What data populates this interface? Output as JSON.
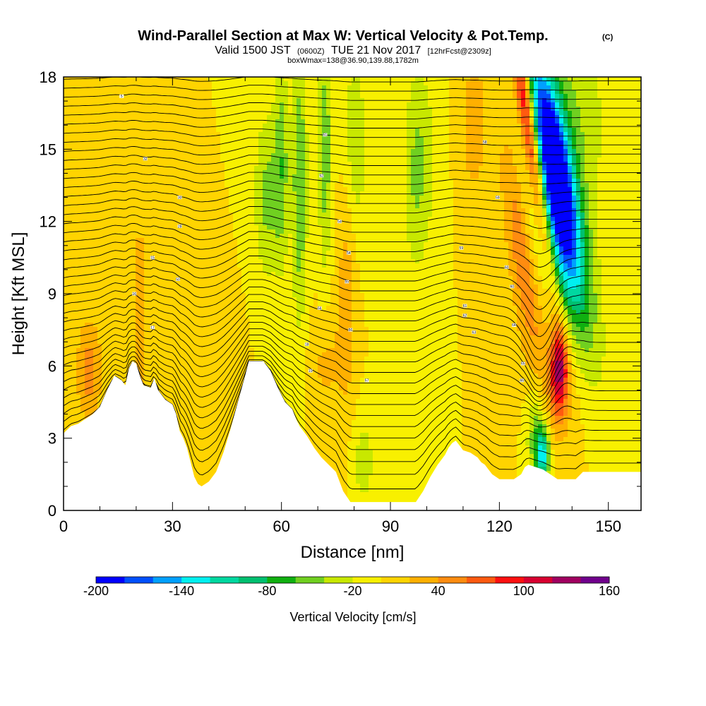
{
  "title": {
    "main": "Wind-Parallel Section at Max W: Vertical Velocity & Pot.Temp.",
    "copyright": "(C)",
    "valid_prefix": "Valid 1500 JST",
    "valid_utc": "(0600Z)",
    "valid_date": "TUE 21 Nov 2017",
    "forecast_info": "[12hrFcst@2309z]",
    "box_info": "boxWmax=138@36.90,139.88,1782m"
  },
  "chart_data": {
    "type": "heatmap",
    "xlabel": "Distance [nm]",
    "ylabel": "Height [Kft MSL]",
    "xlim": [
      0,
      159
    ],
    "ylim": [
      0,
      18
    ],
    "x_ticks": [
      0,
      30,
      60,
      90,
      120,
      150
    ],
    "x_tick_labels": [
      "0",
      "30",
      "60",
      "90",
      "120",
      "150"
    ],
    "y_ticks": [
      0,
      3,
      6,
      9,
      12,
      15,
      18
    ],
    "y_tick_labels": [
      "0",
      "3",
      "6",
      "9",
      "12",
      "15",
      "18"
    ],
    "colorbar": {
      "title": "Vertical Velocity [cm/s]",
      "levels": [
        -200,
        -180,
        -160,
        -140,
        -120,
        -100,
        -80,
        -60,
        -40,
        -20,
        0,
        20,
        40,
        60,
        80,
        100,
        120,
        140,
        160
      ],
      "tick_values": [
        -200,
        -140,
        -80,
        -20,
        40,
        100,
        160
      ],
      "tick_labels": [
        "-200",
        "-140",
        "-80",
        "-20",
        "40",
        "100",
        "160"
      ],
      "colors": [
        "#0000ff",
        "#0050ff",
        "#00a0ff",
        "#00f0f0",
        "#00d8a0",
        "#00c070",
        "#10b010",
        "#70d020",
        "#c8e800",
        "#f8f000",
        "#ffd400",
        "#ffb000",
        "#ff8c10",
        "#ff5a10",
        "#ff1010",
        "#d80030",
        "#a00060",
        "#70008c"
      ]
    },
    "terrain": [
      [
        0,
        3.2
      ],
      [
        2,
        3.5
      ],
      [
        4,
        3.6
      ],
      [
        6,
        3.8
      ],
      [
        8,
        4.0
      ],
      [
        10,
        4.3
      ],
      [
        12,
        5.0
      ],
      [
        14,
        5.6
      ],
      [
        16,
        5.4
      ],
      [
        17,
        5.2
      ],
      [
        18,
        5.9
      ],
      [
        19,
        6.2
      ],
      [
        20,
        6.1
      ],
      [
        21,
        5.6
      ],
      [
        22,
        5.2
      ],
      [
        24,
        5.1
      ],
      [
        25,
        5.5
      ],
      [
        26,
        5.0
      ],
      [
        28,
        4.6
      ],
      [
        30,
        4.4
      ],
      [
        31,
        4.0
      ],
      [
        32,
        3.3
      ],
      [
        33,
        3.0
      ],
      [
        34,
        2.6
      ],
      [
        35,
        2.0
      ],
      [
        36,
        1.4
      ],
      [
        37,
        1.1
      ],
      [
        38,
        1.0
      ],
      [
        40,
        1.2
      ],
      [
        42,
        1.6
      ],
      [
        44,
        2.4
      ],
      [
        46,
        3.4
      ],
      [
        48,
        4.5
      ],
      [
        50,
        5.6
      ],
      [
        51,
        6.2
      ],
      [
        55,
        6.2
      ],
      [
        57,
        5.8
      ],
      [
        59,
        5.1
      ],
      [
        61,
        4.5
      ],
      [
        63,
        4.2
      ],
      [
        64,
        3.8
      ],
      [
        65,
        3.5
      ],
      [
        67,
        3.1
      ],
      [
        69,
        2.6
      ],
      [
        71,
        2.2
      ],
      [
        73,
        1.9
      ],
      [
        75,
        1.6
      ],
      [
        77,
        0.8
      ],
      [
        79,
        0.35
      ],
      [
        88,
        0.35
      ],
      [
        91,
        0.35
      ],
      [
        97,
        0.35
      ],
      [
        99,
        0.8
      ],
      [
        101,
        1.4
      ],
      [
        103,
        1.9
      ],
      [
        105,
        2.3
      ],
      [
        106,
        2.6
      ],
      [
        107,
        2.8
      ],
      [
        108,
        2.9
      ],
      [
        109,
        2.7
      ],
      [
        110,
        2.5
      ],
      [
        112,
        2.4
      ],
      [
        114,
        2.2
      ],
      [
        115,
        2.0
      ],
      [
        116,
        1.9
      ],
      [
        117,
        1.7
      ],
      [
        118,
        1.5
      ],
      [
        120,
        1.3
      ],
      [
        124,
        1.3
      ],
      [
        126,
        1.5
      ],
      [
        127,
        1.8
      ],
      [
        128,
        1.9
      ],
      [
        130,
        1.8
      ],
      [
        132,
        1.7
      ],
      [
        134,
        1.5
      ],
      [
        136,
        1.3
      ],
      [
        141,
        1.3
      ],
      [
        143,
        1.6
      ],
      [
        159,
        1.6
      ]
    ],
    "w_features": [
      {
        "x": 135,
        "z": 14.5,
        "sx": 3.2,
        "sz": 3.2,
        "tilt": -1.1,
        "w": -200
      },
      {
        "x": 137.5,
        "z": 10.5,
        "sx": 5.0,
        "sz": 3.5,
        "tilt": -1.2,
        "w": -90
      },
      {
        "x": 139,
        "z": 16.0,
        "sx": 7.5,
        "sz": 3.5,
        "tilt": 0,
        "w": -40
      },
      {
        "x": 128.5,
        "z": 15.5,
        "sx": 1.6,
        "sz": 4.0,
        "tilt": -1.0,
        "w": 150
      },
      {
        "x": 126,
        "z": 11.0,
        "sx": 2.8,
        "sz": 3.5,
        "tilt": -0.8,
        "w": 60
      },
      {
        "x": 136.5,
        "z": 5.8,
        "sx": 1.6,
        "sz": 1.3,
        "tilt": 0,
        "w": 110
      },
      {
        "x": 137,
        "z": 6.5,
        "sx": 5.5,
        "sz": 2.6,
        "tilt": 0,
        "w": 35
      },
      {
        "x": 130,
        "z": 3.2,
        "sx": 1.8,
        "sz": 1.5,
        "tilt": 0,
        "w": -55
      },
      {
        "x": 132,
        "z": 2.3,
        "sx": 1.3,
        "sz": 0.8,
        "tilt": 0,
        "w": -120
      },
      {
        "x": 65,
        "z": 13.5,
        "sx": 1.5,
        "sz": 4.0,
        "tilt": 0,
        "w": -60
      },
      {
        "x": 60,
        "z": 14.5,
        "sx": 1.4,
        "sz": 3.0,
        "tilt": 0,
        "w": -50
      },
      {
        "x": 72,
        "z": 15.0,
        "sx": 1.3,
        "sz": 3.5,
        "tilt": 0,
        "w": -55
      },
      {
        "x": 56,
        "z": 13.0,
        "sx": 2.5,
        "sz": 2.5,
        "tilt": 0,
        "w": -45
      },
      {
        "x": 80,
        "z": 15.0,
        "sx": 2.5,
        "sz": 3.0,
        "tilt": 0,
        "w": -40
      },
      {
        "x": 97,
        "z": 14.0,
        "sx": 2.5,
        "sz": 3.0,
        "tilt": 0,
        "w": -40
      },
      {
        "x": 101,
        "z": 15.0,
        "sx": 3.0,
        "sz": 3.0,
        "tilt": 0,
        "w": -15
      },
      {
        "x": 113,
        "z": 16.0,
        "sx": 3.0,
        "sz": 2.5,
        "tilt": 0,
        "w": 30
      },
      {
        "x": 7,
        "z": 5.8,
        "sx": 2.5,
        "sz": 1.5,
        "tilt": 0,
        "w": 50
      },
      {
        "x": 21,
        "z": 8.0,
        "sx": 1.5,
        "sz": 4.0,
        "tilt": 0,
        "w": 30
      },
      {
        "x": 78,
        "z": 9.5,
        "sx": 2.0,
        "sz": 4.0,
        "tilt": 0,
        "w": 35
      },
      {
        "x": 82.5,
        "z": 2.0,
        "sx": 2.5,
        "sz": 1.5,
        "tilt": 0,
        "w": -30
      },
      {
        "x": 72,
        "z": 6.0,
        "sx": 3.0,
        "sz": 1.5,
        "tilt": 0,
        "w": 25
      },
      {
        "x": 43,
        "z": 5.0,
        "sx": 3.5,
        "sz": 2.0,
        "tilt": 0,
        "w": 20
      }
    ],
    "theta_contours": {
      "count": 42,
      "min_height": 0.3,
      "max_height": 18.0,
      "labels": [
        {
          "x": 16,
          "z": 17.2,
          "text": "5"
        },
        {
          "x": 22.5,
          "z": 14.6,
          "text": "32"
        },
        {
          "x": 32,
          "z": 13.0,
          "text": "30"
        },
        {
          "x": 32,
          "z": 11.8,
          "text": "28"
        },
        {
          "x": 24.5,
          "z": 10.5,
          "text": "15"
        },
        {
          "x": 31.5,
          "z": 9.6,
          "text": "50"
        },
        {
          "x": 19.5,
          "z": 9.0,
          "text": "16"
        },
        {
          "x": 24.5,
          "z": 7.6,
          "text": "17"
        },
        {
          "x": 67,
          "z": 6.9,
          "text": "18"
        },
        {
          "x": 68,
          "z": 5.8,
          "text": "19"
        },
        {
          "x": 72,
          "z": 15.6,
          "text": "51"
        },
        {
          "x": 71,
          "z": 13.9,
          "text": "52"
        },
        {
          "x": 76,
          "z": 12.0,
          "text": "54"
        },
        {
          "x": 78.5,
          "z": 10.7,
          "text": "54"
        },
        {
          "x": 78,
          "z": 9.5,
          "text": "55"
        },
        {
          "x": 70.5,
          "z": 8.4,
          "text": "56"
        },
        {
          "x": 79,
          "z": 7.5,
          "text": "56"
        },
        {
          "x": 83.5,
          "z": 5.4,
          "text": "57"
        },
        {
          "x": 116,
          "z": 15.3,
          "text": "58"
        },
        {
          "x": 119.5,
          "z": 13.0,
          "text": "59"
        },
        {
          "x": 109.5,
          "z": 10.9,
          "text": "59"
        },
        {
          "x": 122,
          "z": 10.1,
          "text": "60"
        },
        {
          "x": 123.5,
          "z": 9.3,
          "text": "60"
        },
        {
          "x": 110.5,
          "z": 8.5,
          "text": "61"
        },
        {
          "x": 110.5,
          "z": 8.1,
          "text": "62"
        },
        {
          "x": 113,
          "z": 7.4,
          "text": "63"
        },
        {
          "x": 124,
          "z": 7.7,
          "text": "64"
        },
        {
          "x": 126.5,
          "z": 6.1,
          "text": "65"
        },
        {
          "x": 126.2,
          "z": 5.4,
          "text": "66"
        },
        {
          "x": 104,
          "z": 1.9,
          "text": "67"
        }
      ]
    }
  }
}
